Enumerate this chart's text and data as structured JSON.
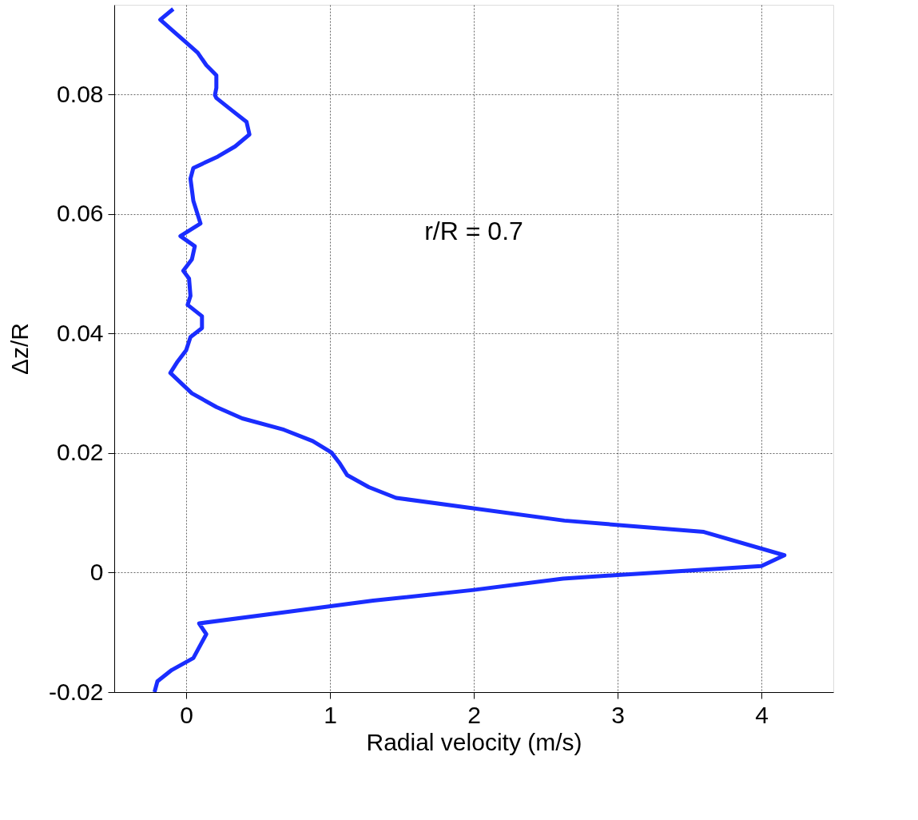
{
  "chart_data": {
    "type": "line",
    "xlabel": "Radial velocity (m/s)",
    "ylabel": "Δz/R",
    "x": [
      -0.09,
      -0.18,
      -0.1,
      0.0,
      0.08,
      0.14,
      0.21,
      0.21,
      0.2,
      0.21,
      0.32,
      0.42,
      0.44,
      0.34,
      0.22,
      0.05,
      0.03,
      0.05,
      0.1,
      -0.04,
      0.06,
      0.04,
      -0.02,
      0.02,
      0.03,
      0.01,
      0.11,
      0.11,
      0.03,
      0.0,
      -0.06,
      -0.11,
      0.04,
      0.21,
      0.39,
      0.68,
      0.88,
      1.01,
      1.07,
      1.12,
      1.27,
      1.46,
      2.63,
      3.6,
      4.16,
      4.0,
      3.0,
      2.62,
      2.0,
      1.3,
      0.09,
      0.14,
      0.05,
      -0.1,
      -0.2,
      -0.22
    ],
    "series": [
      {
        "color": "#1a2dff",
        "values": [
          0.0943,
          0.0925,
          0.0908,
          0.0887,
          0.087,
          0.0849,
          0.0832,
          0.0811,
          0.0799,
          0.0794,
          0.0773,
          0.0754,
          0.0733,
          0.0713,
          0.0696,
          0.0677,
          0.0659,
          0.0622,
          0.0584,
          0.0563,
          0.0546,
          0.0524,
          0.0505,
          0.0492,
          0.0463,
          0.0448,
          0.0429,
          0.0409,
          0.0394,
          0.0372,
          0.0353,
          0.0334,
          0.03,
          0.0277,
          0.0258,
          0.0239,
          0.022,
          0.0201,
          0.0182,
          0.0163,
          0.0143,
          0.0125,
          0.0087,
          0.0068,
          0.0029,
          0.0011,
          -0.0004,
          -0.001,
          -0.0029,
          -0.0047,
          -0.0085,
          -0.0103,
          -0.0143,
          -0.0163,
          -0.0182,
          -0.02
        ]
      }
    ],
    "xlim": [
      -0.5,
      4.5
    ],
    "ylim": [
      -0.02,
      0.095
    ],
    "xticks": [
      0,
      1,
      2,
      3,
      4
    ],
    "yticks": [
      -0.02,
      0,
      0.02,
      0.04,
      0.06,
      0.08
    ],
    "grid": true,
    "line_style": "solid",
    "marker": "none",
    "annotations": [
      "r/R = 0.7"
    ]
  }
}
